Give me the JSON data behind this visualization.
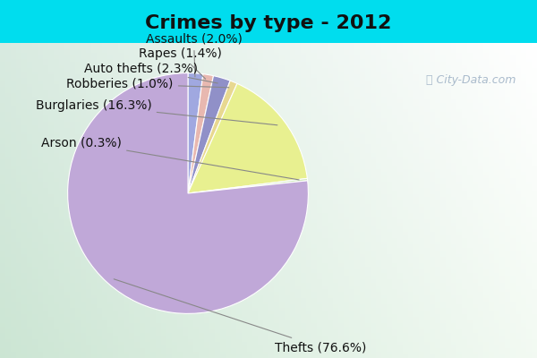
{
  "title": "Crimes by type - 2012",
  "wedge_order": [
    "Assaults",
    "Rapes",
    "Auto thefts",
    "Robberies",
    "Burglaries",
    "Arson",
    "Thefts"
  ],
  "values": [
    2.0,
    1.4,
    2.3,
    1.0,
    16.3,
    0.3,
    76.6
  ],
  "colors": [
    "#a0a8e0",
    "#e8b8b0",
    "#9090c8",
    "#e8d890",
    "#e8f090",
    "#d0e8c0",
    "#c0a8d8"
  ],
  "background_top": "#00ddee",
  "background_area_color": "#d8f0e0",
  "title_fontsize": 16,
  "label_fontsize": 10,
  "startangle": 90,
  "watermark": "City-Data.com",
  "label_texts": [
    "Assaults (2.0%)",
    "Rapes (1.4%)",
    "Auto thefts (2.3%)",
    "Robberies (1.0%)",
    "Burglaries (16.3%)",
    "Arson (0.3%)",
    "Thefts (76.6%)"
  ]
}
